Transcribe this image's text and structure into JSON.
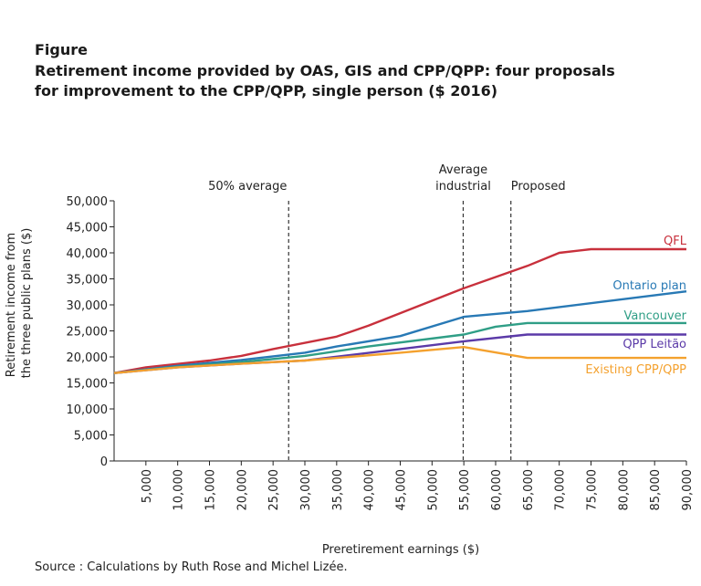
{
  "figure_label": "Figure",
  "title_lines": [
    "Retirement income provided by OAS, GIS and CPP/QPP: four proposals",
    "for improvement to the CPP/QPP, single person ($ 2016)"
  ],
  "source": "Source : Calculations by Ruth Rose and Michel Lizée.",
  "chart_data": {
    "type": "line",
    "xlabel": "Preretirement earnings ($)",
    "ylabel": [
      "Retirement income from",
      "the three public plans ($)"
    ],
    "xlim": [
      0,
      90000
    ],
    "ylim": [
      0,
      50000
    ],
    "x_ticks": [
      5000,
      10000,
      15000,
      20000,
      25000,
      30000,
      35000,
      40000,
      45000,
      50000,
      55000,
      60000,
      65000,
      70000,
      75000,
      80000,
      85000,
      90000
    ],
    "x_tick_labels": [
      "5,000",
      "10,000",
      "15,000",
      "20,000",
      "25,000",
      "30,000",
      "35,000",
      "40,000",
      "45,000",
      "50,000",
      "55,000",
      "60,000",
      "65,000",
      "70,000",
      "75,000",
      "80,000",
      "85,000",
      "90,000"
    ],
    "y_ticks": [
      0,
      5000,
      10000,
      15000,
      20000,
      25000,
      30000,
      35000,
      40000,
      45000,
      50000
    ],
    "y_tick_labels": [
      "0",
      "5,000",
      "10,000",
      "15,000",
      "20,000",
      "25,000",
      "30,000",
      "35,000",
      "40,000",
      "45,000",
      "50,000"
    ],
    "grid": false,
    "reference_lines": [
      {
        "x": 27450,
        "label": [
          "50% average"
        ]
      },
      {
        "x": 54900,
        "label": [
          "Average",
          "industrial"
        ]
      },
      {
        "x": 62400,
        "label": [
          "Proposed"
        ]
      }
    ],
    "series": [
      {
        "name": "QFL",
        "color": "#c8303c",
        "points": [
          [
            0,
            16900
          ],
          [
            5000,
            18000
          ],
          [
            15000,
            19300
          ],
          [
            20000,
            20200
          ],
          [
            25000,
            21500
          ],
          [
            35000,
            23900
          ],
          [
            40000,
            26000
          ],
          [
            45000,
            28400
          ],
          [
            55000,
            33200
          ],
          [
            65000,
            37500
          ],
          [
            70000,
            40000
          ],
          [
            75000,
            40700
          ],
          [
            90000,
            40700
          ]
        ]
      },
      {
        "name": "Ontario plan",
        "color": "#2879b5",
        "points": [
          [
            0,
            16900
          ],
          [
            10000,
            18300
          ],
          [
            20000,
            19400
          ],
          [
            30000,
            20800
          ],
          [
            35000,
            22000
          ],
          [
            45000,
            24000
          ],
          [
            55000,
            27700
          ],
          [
            65000,
            28800
          ],
          [
            90000,
            32600
          ]
        ]
      },
      {
        "name": "Vancouver",
        "color": "#2f9e86",
        "points": [
          [
            0,
            16900
          ],
          [
            10000,
            18100
          ],
          [
            20000,
            19000
          ],
          [
            30000,
            20200
          ],
          [
            40000,
            22000
          ],
          [
            55000,
            24300
          ],
          [
            60000,
            25800
          ],
          [
            65000,
            26500
          ],
          [
            90000,
            26500
          ]
        ]
      },
      {
        "name": "QPP Leitão",
        "color": "#5b3aa8",
        "points": [
          [
            0,
            16900
          ],
          [
            10000,
            18000
          ],
          [
            20000,
            18700
          ],
          [
            30000,
            19300
          ],
          [
            45000,
            21500
          ],
          [
            55000,
            23000
          ],
          [
            65000,
            24300
          ],
          [
            90000,
            24300
          ]
        ]
      },
      {
        "name": "Existing CPP/QPP",
        "color": "#f4a12e",
        "points": [
          [
            0,
            16900
          ],
          [
            10000,
            18000
          ],
          [
            20000,
            18700
          ],
          [
            30000,
            19300
          ],
          [
            45000,
            20800
          ],
          [
            55000,
            21900
          ],
          [
            65000,
            19800
          ],
          [
            90000,
            19800
          ]
        ]
      }
    ]
  }
}
